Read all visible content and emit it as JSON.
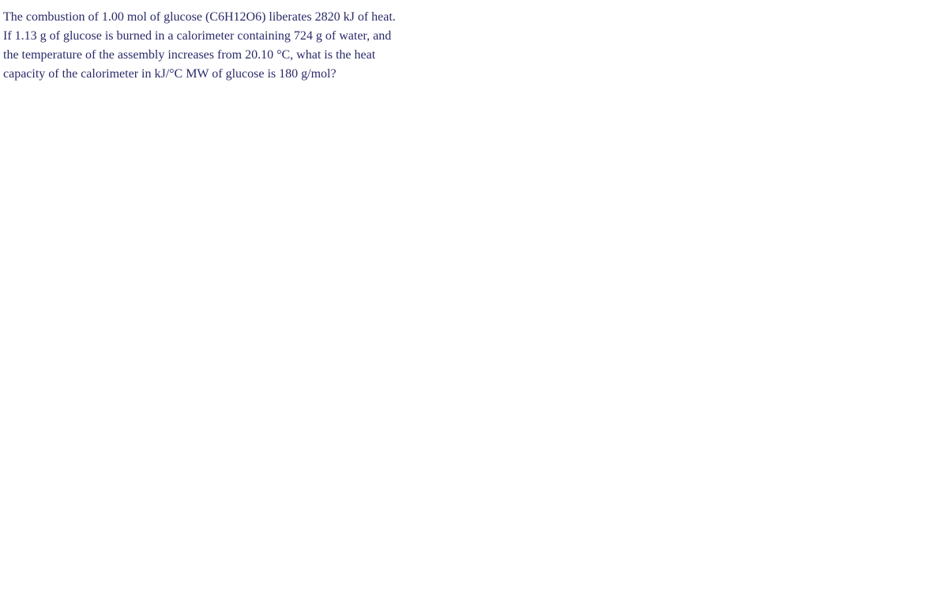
{
  "question": {
    "text": "The combustion of 1.00 mol of glucose (C6H12O6) liberates 2820 kJ of heat. If 1.13 g of glucose is burned in a calorimeter containing 724 g of water, and the temperature of the assembly increases from 20.10 °C, what is the heat capacity of the calorimeter in kJ/°C MW of glucose is 180 g/mol?",
    "text_color": "#2a2a6a",
    "background_color": "#ffffff",
    "font_family": "Georgia, serif",
    "font_size": 16,
    "line_height": 1.5,
    "max_width": 510
  }
}
